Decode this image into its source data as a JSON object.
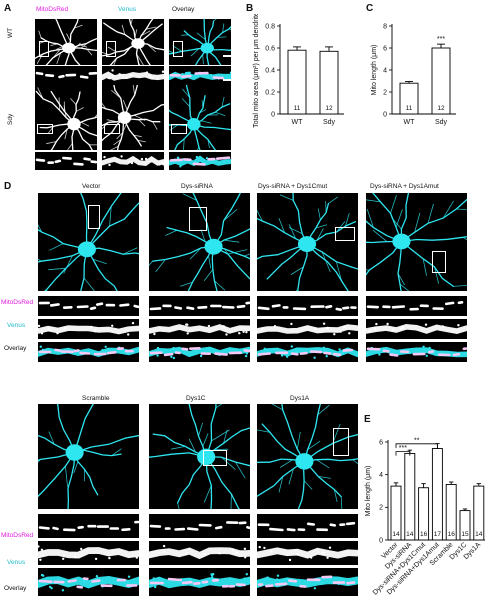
{
  "panel_letters": {
    "a": "A",
    "b": "B",
    "c": "C",
    "d": "D",
    "e": "E"
  },
  "panel_a": {
    "columns": [
      "MitoDsRed",
      "Venus",
      "Overlay"
    ],
    "rows": [
      "WT",
      "Sdy"
    ]
  },
  "panel_d": {
    "top_conditions": [
      "Vector",
      "Dys-siRNA",
      "Dys-siRNA + Dys1Cmut",
      "Dys-siRNA + Dys1Amut"
    ],
    "bottom_conditions": [
      "Scramble",
      "Dys1C",
      "Dys1A"
    ],
    "row_labels": [
      "MitoDsRed",
      "Venus",
      "Overlay"
    ]
  },
  "colors": {
    "mito": "#e01be0",
    "venus": "#22b8c8",
    "neuron": "#2ee6f0"
  },
  "chart_data": [
    {
      "type": "bar",
      "panel": "B",
      "categories": [
        "WT",
        "Sdy"
      ],
      "values": [
        0.58,
        0.57
      ],
      "errors": [
        0.03,
        0.04
      ],
      "n": [
        "11",
        "12"
      ],
      "ylabel": "Total mito area (μm²) per μm dendrite",
      "ylim": [
        0,
        0.8
      ],
      "yticks": [
        "0",
        "0.2",
        "0.4",
        "0.6",
        "0.8"
      ],
      "significance": []
    },
    {
      "type": "bar",
      "panel": "C",
      "categories": [
        "WT",
        "Sdy"
      ],
      "values": [
        2.8,
        6.0
      ],
      "errors": [
        0.15,
        0.35
      ],
      "n": [
        "11",
        "12"
      ],
      "ylabel": "Mito length (μm)",
      "ylim": [
        0,
        8
      ],
      "yticks": [
        "0",
        "2",
        "4",
        "6",
        "8"
      ],
      "significance": [
        {
          "bar": 1,
          "label": "***"
        }
      ]
    },
    {
      "type": "bar",
      "panel": "E",
      "categories": [
        "Vector",
        "Dys-siRNA",
        "Dys-siRNA+Dys1Cmut",
        "Dys-siRNA+Dys1Amut",
        "Scramble",
        "Dys1C",
        "Dys1A"
      ],
      "values": [
        3.3,
        5.3,
        3.2,
        5.6,
        3.4,
        1.8,
        3.3
      ],
      "errors": [
        0.2,
        0.2,
        0.25,
        0.3,
        0.15,
        0.1,
        0.15
      ],
      "n": [
        "14",
        "14",
        "16",
        "17",
        "16",
        "15",
        "14"
      ],
      "ylabel": "Mito length (μm)",
      "ylim": [
        0,
        6
      ],
      "yticks": [
        "0",
        "2",
        "4",
        "6"
      ],
      "brackets": [
        {
          "from": 0,
          "to": 1,
          "label": "***"
        },
        {
          "from": 0,
          "to": 3,
          "label": "**"
        },
        {
          "from": 0,
          "to": 5,
          "label": "***"
        }
      ]
    }
  ]
}
